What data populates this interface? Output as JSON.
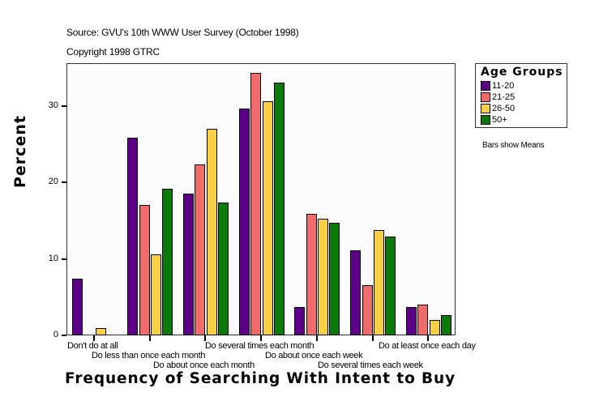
{
  "header": {
    "source": "Source: GVU's 10th WWW User Survey (October 1998)",
    "copyright": "Copyright 1998 GTRC"
  },
  "legend": {
    "title": "Age Groups",
    "items": [
      {
        "label": "11-20",
        "color": "#5c0087"
      },
      {
        "label": "21-25",
        "color": "#f06b6b"
      },
      {
        "label": "26-50",
        "color": "#f7d046"
      },
      {
        "label": "50+",
        "color": "#0b7a0b"
      }
    ]
  },
  "note": "Bars show Means",
  "axes": {
    "ylabel": "Percent",
    "xlabel": "Frequency of Searching With Intent to Buy",
    "yticks": [
      "0",
      "10",
      "20",
      "30"
    ]
  },
  "chart_data": {
    "type": "bar",
    "title": "",
    "subtitle": "Source: GVU's 10th WWW User Survey (October 1998) / Copyright 1998 GTRC",
    "xlabel": "Frequency of Searching With Intent to Buy",
    "ylabel": "Percent",
    "ylim": [
      0,
      35.5
    ],
    "yticks": [
      0,
      10,
      20,
      30
    ],
    "grid": false,
    "legend_title": "Age Groups",
    "legend_position": "right",
    "annotation": "Bars show Means",
    "categories": [
      "Don't do at all",
      "Do less than once each month",
      "Do about once each month",
      "Do several times each month",
      "Do about once each week",
      "Do several times each week",
      "Do at least once each day"
    ],
    "series": [
      {
        "name": "11-20",
        "color": "#5c0087",
        "values": [
          7.4,
          25.9,
          18.5,
          29.7,
          3.7,
          11.1,
          3.7
        ]
      },
      {
        "name": "21-25",
        "color": "#f06b6b",
        "values": [
          0,
          17.1,
          22.4,
          34.3,
          15.9,
          6.6,
          4.0
        ]
      },
      {
        "name": "26-50",
        "color": "#f7d046",
        "values": [
          1.0,
          10.6,
          27.0,
          30.6,
          15.3,
          13.8,
          2.0
        ]
      },
      {
        "name": "50+",
        "color": "#0b7a0b",
        "values": [
          0,
          19.2,
          17.4,
          33.1,
          14.7,
          12.9,
          2.7
        ]
      }
    ]
  }
}
